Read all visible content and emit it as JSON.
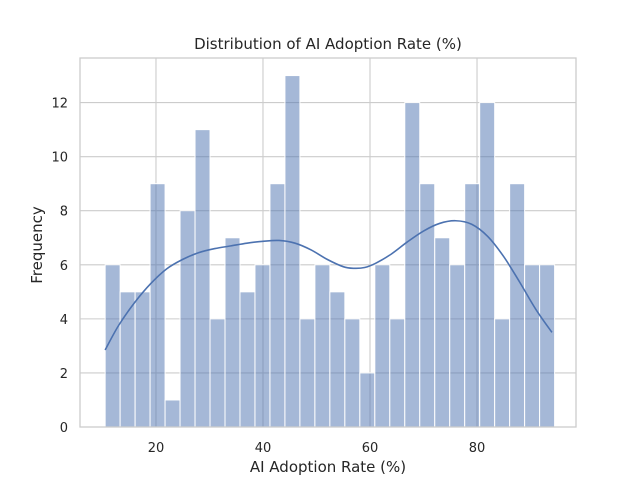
{
  "chart_data": {
    "type": "bar",
    "title": "Distribution of AI Adoption Rate (%)",
    "xlabel": "AI Adoption Rate (%)",
    "ylabel": "Frequency",
    "xlim": [
      5.8,
      98.5
    ],
    "ylim": [
      0,
      13.65
    ],
    "xticks": [
      20,
      40,
      60,
      80
    ],
    "yticks": [
      0,
      2,
      4,
      6,
      8,
      10,
      12
    ],
    "grid": true,
    "bin_start": 10.5,
    "bin_width": 2.8,
    "series": [
      {
        "values": [
          6,
          5,
          5,
          9,
          1,
          8,
          11,
          4,
          7,
          5,
          6,
          9,
          13,
          4,
          6,
          5,
          4,
          2,
          6,
          4,
          12,
          9,
          7,
          6,
          9,
          12,
          4,
          9,
          6,
          6
        ],
        "color": "#4c72b0"
      }
    ],
    "kde": {
      "color": "#4c72b0",
      "points": [
        [
          10.5,
          2.85
        ],
        [
          13,
          3.75
        ],
        [
          16,
          4.6
        ],
        [
          19,
          5.3
        ],
        [
          22,
          5.85
        ],
        [
          25,
          6.2
        ],
        [
          28,
          6.45
        ],
        [
          31,
          6.6
        ],
        [
          34,
          6.7
        ],
        [
          37,
          6.8
        ],
        [
          40,
          6.87
        ],
        [
          43,
          6.9
        ],
        [
          46,
          6.8
        ],
        [
          49,
          6.55
        ],
        [
          52,
          6.2
        ],
        [
          55,
          5.93
        ],
        [
          57,
          5.87
        ],
        [
          59,
          5.9
        ],
        [
          61,
          6.05
        ],
        [
          64,
          6.4
        ],
        [
          67,
          6.85
        ],
        [
          70,
          7.25
        ],
        [
          73,
          7.53
        ],
        [
          76,
          7.63
        ],
        [
          79,
          7.5
        ],
        [
          82,
          7.05
        ],
        [
          85,
          6.3
        ],
        [
          88,
          5.35
        ],
        [
          91,
          4.35
        ],
        [
          94,
          3.5
        ]
      ]
    }
  }
}
